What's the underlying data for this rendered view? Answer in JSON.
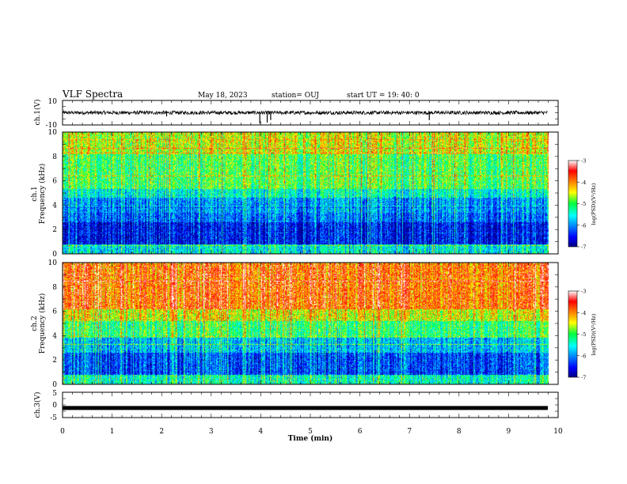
{
  "header": {
    "title": "VLF Spectra",
    "date": "May 18, 2023",
    "station": "station= OUJ",
    "start": "start  UT =   19: 40: 0"
  },
  "chart_data": [
    {
      "type": "line",
      "panel": "ch1-waveform",
      "ylabel": "ch.1(V)",
      "ylim": [
        -10,
        10
      ],
      "yticks": [
        "10",
        "-10"
      ],
      "xlim": [
        0,
        10
      ],
      "baseline": 0,
      "noise_amplitude": 1.5,
      "spikes": [
        {
          "t": 3.98,
          "v": -9
        },
        {
          "t": 4.13,
          "v": -8
        },
        {
          "t": 4.2,
          "v": -6
        },
        {
          "t": 7.4,
          "v": -6
        },
        {
          "t": 2.1,
          "v": -3
        }
      ]
    },
    {
      "type": "heatmap",
      "panel": "ch1-spectrogram",
      "ylabel": "ch.1",
      "ylabel2": "Frequency (kHz)",
      "ylim": [
        0,
        10
      ],
      "yticks": [
        "0",
        "2",
        "4",
        "6",
        "8",
        "10"
      ],
      "xlim": [
        0,
        10
      ],
      "zlim": [
        -7,
        -3
      ],
      "colorbar_label": "log(PSD)(V²/Hz)",
      "colorbar_ticks": [
        "-3",
        "-4",
        "-5",
        "-6",
        "-7"
      ],
      "bands": [
        {
          "f": [
            0,
            0.8
          ],
          "z": -5.6
        },
        {
          "f": [
            0.8,
            2.6
          ],
          "z": -6.6
        },
        {
          "f": [
            2.6,
            3.4
          ],
          "z": -6.2
        },
        {
          "f": [
            3.4,
            4.6
          ],
          "z": -6.0
        },
        {
          "f": [
            4.6,
            5.4
          ],
          "z": -5.5
        },
        {
          "f": [
            5.4,
            8.2
          ],
          "z": -5.0
        },
        {
          "f": [
            8.2,
            10
          ],
          "z": -4.6
        }
      ]
    },
    {
      "type": "heatmap",
      "panel": "ch2-spectrogram",
      "ylabel": "ch.2",
      "ylabel2": "Frequency (kHz)",
      "ylim": [
        0,
        10
      ],
      "yticks": [
        "0",
        "2",
        "4",
        "6",
        "8",
        "10"
      ],
      "xlim": [
        0,
        10
      ],
      "zlim": [
        -7,
        -3
      ],
      "colorbar_label": "log(PSD)(V²/Hz)",
      "colorbar_ticks": [
        "-3",
        "-4",
        "-5",
        "-6",
        "-7"
      ],
      "bands": [
        {
          "f": [
            0,
            0.8
          ],
          "z": -5.4
        },
        {
          "f": [
            0.8,
            2.6
          ],
          "z": -6.3
        },
        {
          "f": [
            2.6,
            3.8
          ],
          "z": -5.8
        },
        {
          "f": [
            3.8,
            5.2
          ],
          "z": -5.1
        },
        {
          "f": [
            5.2,
            6.2
          ],
          "z": -4.5
        },
        {
          "f": [
            6.2,
            10
          ],
          "z": -3.9
        }
      ]
    },
    {
      "type": "line",
      "panel": "ch3-waveform",
      "ylabel": "ch.3(V)",
      "ylim": [
        -5,
        5
      ],
      "yticks": [
        "5",
        "0",
        "-5"
      ],
      "xlim": [
        0,
        10
      ],
      "xticks": [
        "0",
        "1",
        "2",
        "3",
        "4",
        "5",
        "6",
        "7",
        "8",
        "9",
        "10"
      ],
      "xlabel": "Time (min)",
      "values_constant": -1.2
    }
  ]
}
